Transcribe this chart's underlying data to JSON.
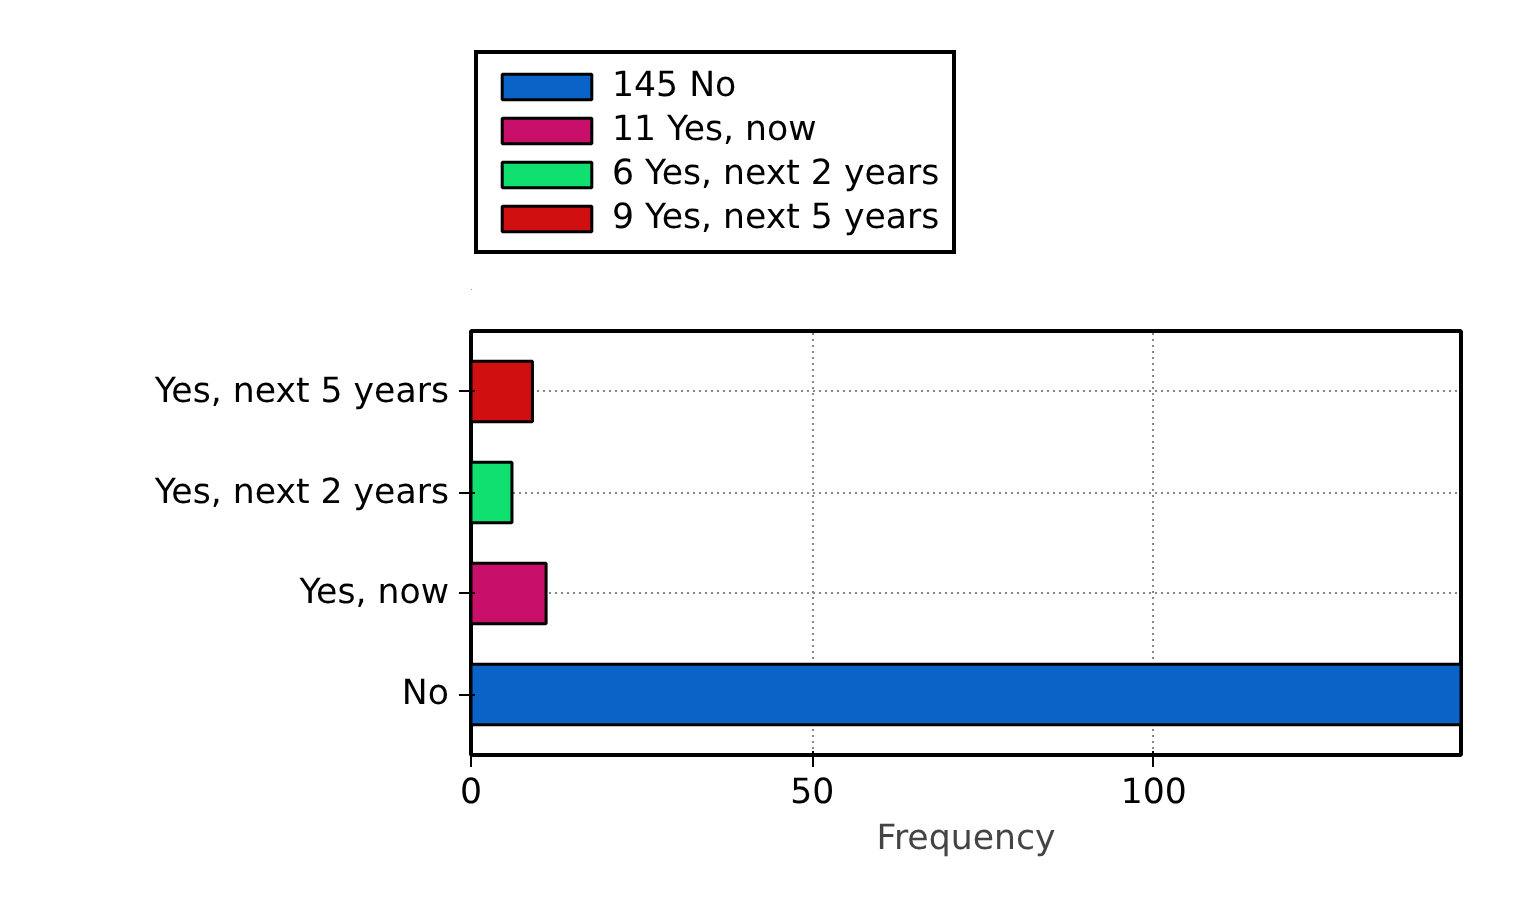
{
  "chart_data": {
    "type": "bar",
    "orientation": "horizontal",
    "categories": [
      "Yes, next 5 years",
      "Yes, next 2 years",
      "Yes, now",
      "No"
    ],
    "series": [
      {
        "name": "145 No",
        "color": "#0a64c8",
        "values": [
          null,
          null,
          null,
          145
        ]
      },
      {
        "name": "11 Yes, now",
        "color": "#c8106a",
        "values": [
          null,
          null,
          11,
          null
        ]
      },
      {
        "name": "6 Yes, next 2 years",
        "color": "#10e070",
        "values": [
          null,
          6,
          null,
          null
        ]
      },
      {
        "name": "9 Yes, next 5 years",
        "color": "#d01010",
        "values": [
          9,
          null,
          null,
          null
        ]
      }
    ],
    "xlim": [
      0,
      145
    ],
    "xticks": [
      0,
      50,
      100
    ],
    "xlabel": "Frequency",
    "grid": true,
    "legend": "top"
  }
}
